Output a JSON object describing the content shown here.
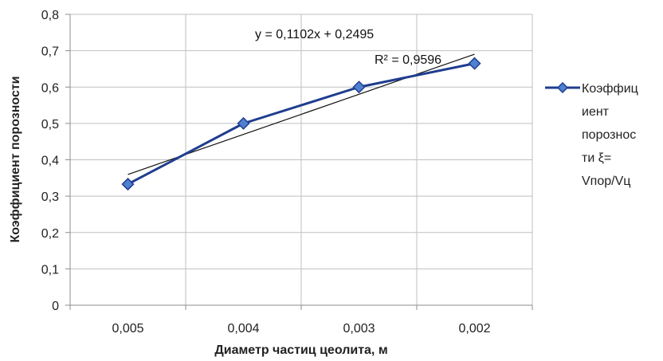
{
  "chart_data": {
    "type": "line",
    "title": "",
    "xlabel": "Диаметр частиц цеолита, м",
    "ylabel": "Коэффициент порозности",
    "categories": [
      "0,005",
      "0,004",
      "0,003",
      "0,002"
    ],
    "series": [
      {
        "name": "Коэффициент порозности ξ= Vпор/Vц",
        "values": [
          0.333,
          0.5,
          0.6,
          0.665
        ],
        "color": "#1f3d8f",
        "marker": "diamond",
        "marker_color": "#4f7fcf"
      }
    ],
    "trendline": {
      "type": "linear",
      "slope": 0.1102,
      "intercept": 0.2495,
      "equation_label": "y = 0,1102x + 0,2495",
      "r2_label": "R² = 0,9596",
      "color": "#111111"
    },
    "ylim": [
      0,
      0.8
    ],
    "yticks": [
      "0",
      "0,1",
      "0,2",
      "0,3",
      "0,4",
      "0,5",
      "0,6",
      "0,7",
      "0,8"
    ],
    "grid": true,
    "legend_position": "right",
    "legend_lines": [
      "Коэффиц",
      "иент",
      "порознос",
      "ти ξ=",
      "Vпор/Vц"
    ]
  }
}
